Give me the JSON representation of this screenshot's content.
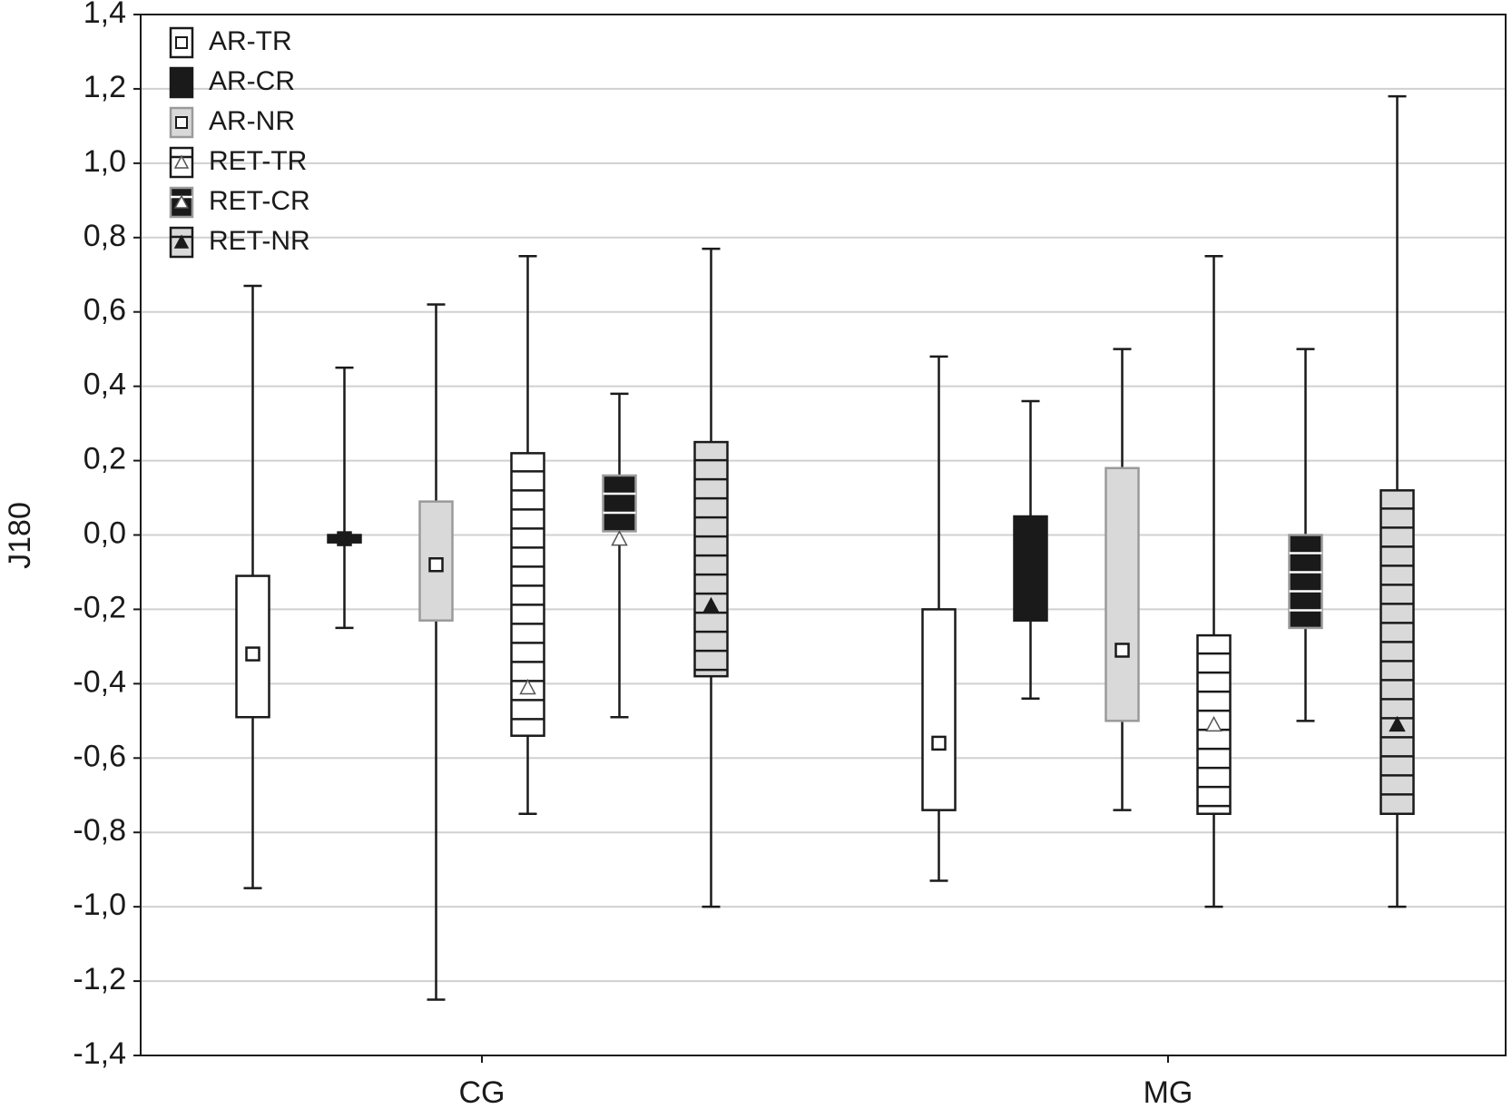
{
  "chart_data": {
    "type": "box",
    "y_label": "J180",
    "categories": [
      "CG",
      "MG"
    ],
    "ylim": [
      -1.4,
      1.4
    ],
    "yticks": [
      {
        "value": -1.4,
        "label": "-1,4"
      },
      {
        "value": -1.2,
        "label": "-1,2"
      },
      {
        "value": -1.0,
        "label": "-1,0"
      },
      {
        "value": -0.8,
        "label": "-0,8"
      },
      {
        "value": -0.6,
        "label": "-0,6"
      },
      {
        "value": -0.4,
        "label": "-0,4"
      },
      {
        "value": -0.2,
        "label": "-0,2"
      },
      {
        "value": 0,
        "label": "0,0"
      },
      {
        "value": 0.2,
        "label": "0,2"
      },
      {
        "value": 0.4,
        "label": "0,4"
      },
      {
        "value": 0.6,
        "label": "0,6"
      },
      {
        "value": 0.8,
        "label": "0,8"
      },
      {
        "value": 1.0,
        "label": "1,0"
      },
      {
        "value": 1.2,
        "label": "1,2"
      },
      {
        "value": 1.4,
        "label": "1,4"
      }
    ],
    "grid": true,
    "legend": "top-left",
    "series": [
      {
        "name": "AR-TR",
        "color": "#ffffff",
        "stroke": "#1a1a1a",
        "stripes": false,
        "marker": "square-open",
        "min": [
          -0.95,
          -0.93
        ],
        "q1": [
          -0.49,
          -0.74
        ],
        "median": [
          -0.32,
          -0.56
        ],
        "q3": [
          -0.11,
          -0.2
        ],
        "max": [
          0.67,
          0.48
        ]
      },
      {
        "name": "AR-CR",
        "color": "#1a1a1a",
        "stroke": "#1a1a1a",
        "stripes": false,
        "marker": "square-filled",
        "min": [
          -0.25,
          -0.44
        ],
        "q1": [
          -0.02,
          -0.23
        ],
        "median": [
          -0.01,
          null
        ],
        "q3": [
          0.0,
          0.05
        ],
        "max": [
          0.45,
          0.36
        ]
      },
      {
        "name": "AR-NR",
        "color": "#d9d9d9",
        "stroke": "#9a9a9a",
        "stripes": false,
        "marker": "square-open",
        "min": [
          -1.25,
          -0.74
        ],
        "q1": [
          -0.23,
          -0.5
        ],
        "median": [
          -0.08,
          -0.31
        ],
        "q3": [
          0.09,
          0.18
        ],
        "max": [
          0.62,
          0.5
        ]
      },
      {
        "name": "RET-TR",
        "color": "#ffffff",
        "stroke": "#1a1a1a",
        "stripes": true,
        "marker": "triangle-open",
        "min": [
          -0.75,
          -1.0
        ],
        "q1": [
          -0.54,
          -0.75
        ],
        "median": [
          -0.41,
          -0.51
        ],
        "q3": [
          0.22,
          -0.27
        ],
        "max": [
          0.75,
          0.75
        ]
      },
      {
        "name": "RET-CR",
        "color": "#1a1a1a",
        "stroke": "#9a9a9a",
        "stripes": true,
        "marker": "triangle-open",
        "min": [
          -0.49,
          -0.5
        ],
        "q1": [
          0.01,
          -0.25
        ],
        "median": [
          -0.01,
          null
        ],
        "q3": [
          0.16,
          0.0
        ],
        "max": [
          0.38,
          0.5
        ]
      },
      {
        "name": "RET-NR",
        "color": "#d9d9d9",
        "stroke": "#1a1a1a",
        "stripes": true,
        "marker": "triangle-filled",
        "min": [
          -1.0,
          -1.0
        ],
        "q1": [
          -0.38,
          -0.75
        ],
        "median": [
          -0.19,
          -0.51
        ],
        "q3": [
          0.25,
          0.12
        ],
        "max": [
          0.77,
          1.18
        ]
      }
    ]
  }
}
